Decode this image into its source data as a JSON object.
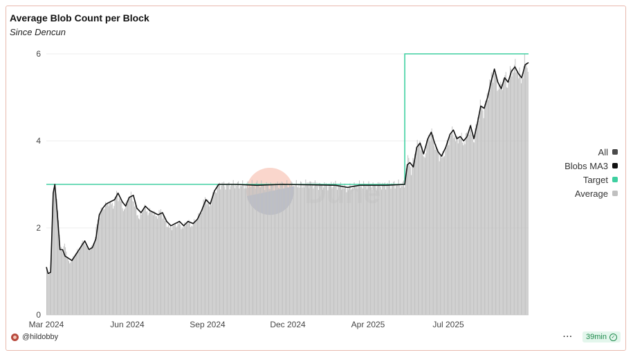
{
  "header": {
    "title": "Average Blob Count per Block",
    "subtitle": "Since Dencun"
  },
  "footer": {
    "user": "@hildobby",
    "refresh": "39min",
    "more_icon": "more-horizontal-icon",
    "check_icon": "check-circle-icon"
  },
  "watermark": "Dune",
  "legend": [
    {
      "label": "All",
      "color": "#4a4a4a"
    },
    {
      "label": "Blobs MA3",
      "color": "#111111"
    },
    {
      "label": "Target",
      "color": "#3ecfa0"
    },
    {
      "label": "Average",
      "color": "#c0c0c0"
    }
  ],
  "chart_data": {
    "type": "bar",
    "title": "Average Blob Count per Block",
    "subtitle": "Since Dencun",
    "x_range": [
      "2024-03-13",
      "2025-09-29"
    ],
    "x_ticks": [
      "Mar 2024",
      "Jun 2024",
      "Sep 2024",
      "Dec 2024",
      "Apr 2025",
      "Jul 2025"
    ],
    "y_ticks": [
      0,
      2,
      4,
      6
    ],
    "ylim": [
      0,
      6
    ],
    "grid": true,
    "legend_position": "right",
    "series": [
      {
        "name": "Average",
        "kind": "bar",
        "color": "#c0c0c0",
        "points": [
          [
            "2024-03-13",
            1.05
          ],
          [
            "2024-03-15",
            0.92
          ],
          [
            "2024-03-18",
            1.0
          ],
          [
            "2024-03-21",
            2.9
          ],
          [
            "2024-03-23",
            3.0
          ],
          [
            "2024-03-26",
            2.4
          ],
          [
            "2024-03-29",
            1.6
          ],
          [
            "2024-04-01",
            1.4
          ],
          [
            "2024-04-03",
            1.7
          ],
          [
            "2024-04-06",
            1.3
          ],
          [
            "2024-04-10",
            1.2
          ],
          [
            "2024-04-15",
            1.4
          ],
          [
            "2024-04-20",
            1.5
          ],
          [
            "2024-04-25",
            1.7
          ],
          [
            "2024-05-01",
            1.5
          ],
          [
            "2024-05-05",
            1.55
          ],
          [
            "2024-05-08",
            1.7
          ],
          [
            "2024-05-12",
            2.2
          ],
          [
            "2024-05-16",
            2.4
          ],
          [
            "2024-05-20",
            2.5
          ],
          [
            "2024-05-25",
            2.6
          ],
          [
            "2024-05-30",
            2.5
          ],
          [
            "2024-06-03",
            2.8
          ],
          [
            "2024-06-08",
            2.6
          ],
          [
            "2024-06-12",
            2.4
          ],
          [
            "2024-06-16",
            2.65
          ],
          [
            "2024-06-21",
            2.75
          ],
          [
            "2024-06-25",
            2.45
          ],
          [
            "2024-06-30",
            2.2
          ],
          [
            "2024-07-05",
            2.5
          ],
          [
            "2024-07-10",
            2.35
          ],
          [
            "2024-07-15",
            2.4
          ],
          [
            "2024-07-20",
            2.25
          ],
          [
            "2024-07-25",
            2.4
          ],
          [
            "2024-07-30",
            2.15
          ],
          [
            "2024-08-04",
            2.0
          ],
          [
            "2024-08-10",
            2.05
          ],
          [
            "2024-08-15",
            2.1
          ],
          [
            "2024-08-20",
            2.0
          ],
          [
            "2024-08-25",
            2.15
          ],
          [
            "2024-08-30",
            2.05
          ],
          [
            "2024-09-05",
            2.2
          ],
          [
            "2024-09-10",
            2.35
          ],
          [
            "2024-09-15",
            2.7
          ],
          [
            "2024-09-20",
            2.5
          ],
          [
            "2024-09-25",
            2.8
          ],
          [
            "2024-10-01",
            3.0
          ],
          [
            "2024-10-10",
            2.98
          ],
          [
            "2024-10-20",
            3.0
          ],
          [
            "2024-11-01",
            2.97
          ],
          [
            "2024-11-15",
            3.0
          ],
          [
            "2024-12-01",
            2.97
          ],
          [
            "2024-12-15",
            3.0
          ],
          [
            "2025-01-01",
            2.98
          ],
          [
            "2025-01-15",
            3.0
          ],
          [
            "2025-02-01",
            2.97
          ],
          [
            "2025-02-15",
            3.0
          ],
          [
            "2025-03-01",
            2.9
          ],
          [
            "2025-03-15",
            2.98
          ],
          [
            "2025-04-01",
            2.97
          ],
          [
            "2025-04-20",
            3.0
          ],
          [
            "2025-05-07",
            3.0
          ],
          [
            "2025-05-09",
            3.4
          ],
          [
            "2025-05-12",
            3.6
          ],
          [
            "2025-05-15",
            3.3
          ],
          [
            "2025-05-20",
            3.8
          ],
          [
            "2025-05-25",
            4.0
          ],
          [
            "2025-05-30",
            3.6
          ],
          [
            "2025-06-04",
            4.1
          ],
          [
            "2025-06-08",
            4.2
          ],
          [
            "2025-06-12",
            3.9
          ],
          [
            "2025-06-16",
            3.7
          ],
          [
            "2025-06-20",
            3.6
          ],
          [
            "2025-06-24",
            3.8
          ],
          [
            "2025-06-29",
            4.1
          ],
          [
            "2025-07-03",
            4.2
          ],
          [
            "2025-07-07",
            4.0
          ],
          [
            "2025-07-11",
            4.1
          ],
          [
            "2025-07-15",
            3.95
          ],
          [
            "2025-07-19",
            4.1
          ],
          [
            "2025-07-23",
            4.3
          ],
          [
            "2025-07-27",
            4.0
          ],
          [
            "2025-07-31",
            4.4
          ],
          [
            "2025-08-04",
            4.8
          ],
          [
            "2025-08-08",
            4.7
          ],
          [
            "2025-08-12",
            5.0
          ],
          [
            "2025-08-16",
            5.4
          ],
          [
            "2025-08-20",
            5.6
          ],
          [
            "2025-08-24",
            5.3
          ],
          [
            "2025-08-28",
            5.2
          ],
          [
            "2025-09-01",
            5.5
          ],
          [
            "2025-09-05",
            5.3
          ],
          [
            "2025-09-09",
            5.6
          ],
          [
            "2025-09-13",
            5.7
          ],
          [
            "2025-09-17",
            5.6
          ],
          [
            "2025-09-21",
            5.4
          ],
          [
            "2025-09-25",
            5.8
          ],
          [
            "2025-09-29",
            5.75
          ]
        ]
      },
      {
        "name": "Blobs MA3",
        "kind": "line",
        "color": "#111111",
        "points": [
          [
            "2024-03-13",
            1.1
          ],
          [
            "2024-03-15",
            0.95
          ],
          [
            "2024-03-18",
            0.98
          ],
          [
            "2024-03-21",
            2.8
          ],
          [
            "2024-03-23",
            3.0
          ],
          [
            "2024-03-26",
            2.3
          ],
          [
            "2024-03-29",
            1.5
          ],
          [
            "2024-04-01",
            1.5
          ],
          [
            "2024-04-04",
            1.35
          ],
          [
            "2024-04-08",
            1.3
          ],
          [
            "2024-04-12",
            1.25
          ],
          [
            "2024-04-17",
            1.4
          ],
          [
            "2024-04-22",
            1.55
          ],
          [
            "2024-04-27",
            1.7
          ],
          [
            "2024-05-02",
            1.5
          ],
          [
            "2024-05-06",
            1.55
          ],
          [
            "2024-05-10",
            1.75
          ],
          [
            "2024-05-14",
            2.3
          ],
          [
            "2024-05-18",
            2.45
          ],
          [
            "2024-05-22",
            2.55
          ],
          [
            "2024-05-27",
            2.6
          ],
          [
            "2024-06-01",
            2.65
          ],
          [
            "2024-06-05",
            2.8
          ],
          [
            "2024-06-10",
            2.6
          ],
          [
            "2024-06-14",
            2.5
          ],
          [
            "2024-06-18",
            2.7
          ],
          [
            "2024-06-23",
            2.75
          ],
          [
            "2024-06-27",
            2.45
          ],
          [
            "2024-07-02",
            2.35
          ],
          [
            "2024-07-07",
            2.5
          ],
          [
            "2024-07-12",
            2.4
          ],
          [
            "2024-07-17",
            2.35
          ],
          [
            "2024-07-22",
            2.3
          ],
          [
            "2024-07-27",
            2.35
          ],
          [
            "2024-08-01",
            2.15
          ],
          [
            "2024-08-06",
            2.05
          ],
          [
            "2024-08-11",
            2.1
          ],
          [
            "2024-08-16",
            2.15
          ],
          [
            "2024-08-21",
            2.05
          ],
          [
            "2024-08-26",
            2.15
          ],
          [
            "2024-09-01",
            2.1
          ],
          [
            "2024-09-06",
            2.2
          ],
          [
            "2024-09-11",
            2.4
          ],
          [
            "2024-09-16",
            2.65
          ],
          [
            "2024-09-21",
            2.55
          ],
          [
            "2024-09-26",
            2.85
          ],
          [
            "2024-10-01",
            3.0
          ],
          [
            "2024-10-20",
            3.0
          ],
          [
            "2024-11-15",
            2.98
          ],
          [
            "2024-12-15",
            3.0
          ],
          [
            "2025-01-15",
            2.99
          ],
          [
            "2025-02-15",
            2.98
          ],
          [
            "2025-03-01",
            2.93
          ],
          [
            "2025-03-15",
            2.98
          ],
          [
            "2025-04-15",
            2.98
          ],
          [
            "2025-05-07",
            3.0
          ],
          [
            "2025-05-10",
            3.45
          ],
          [
            "2025-05-13",
            3.5
          ],
          [
            "2025-05-17",
            3.4
          ],
          [
            "2025-05-21",
            3.85
          ],
          [
            "2025-05-25",
            3.95
          ],
          [
            "2025-05-29",
            3.7
          ],
          [
            "2025-06-03",
            4.05
          ],
          [
            "2025-06-07",
            4.2
          ],
          [
            "2025-06-11",
            3.95
          ],
          [
            "2025-06-15",
            3.75
          ],
          [
            "2025-06-19",
            3.65
          ],
          [
            "2025-06-24",
            3.85
          ],
          [
            "2025-06-29",
            4.15
          ],
          [
            "2025-07-03",
            4.25
          ],
          [
            "2025-07-07",
            4.05
          ],
          [
            "2025-07-11",
            4.1
          ],
          [
            "2025-07-15",
            4.0
          ],
          [
            "2025-07-19",
            4.1
          ],
          [
            "2025-07-23",
            4.35
          ],
          [
            "2025-07-27",
            4.05
          ],
          [
            "2025-07-31",
            4.4
          ],
          [
            "2025-08-04",
            4.8
          ],
          [
            "2025-08-08",
            4.75
          ],
          [
            "2025-08-12",
            5.0
          ],
          [
            "2025-08-16",
            5.35
          ],
          [
            "2025-08-20",
            5.65
          ],
          [
            "2025-08-24",
            5.35
          ],
          [
            "2025-08-28",
            5.2
          ],
          [
            "2025-09-01",
            5.45
          ],
          [
            "2025-09-05",
            5.35
          ],
          [
            "2025-09-09",
            5.6
          ],
          [
            "2025-09-13",
            5.7
          ],
          [
            "2025-09-17",
            5.55
          ],
          [
            "2025-09-21",
            5.45
          ],
          [
            "2025-09-25",
            5.75
          ],
          [
            "2025-09-29",
            5.8
          ]
        ]
      },
      {
        "name": "Target",
        "kind": "step-line",
        "color": "#3ecfa0",
        "points": [
          [
            "2024-03-13",
            3
          ],
          [
            "2025-05-07",
            3
          ],
          [
            "2025-05-07",
            6
          ],
          [
            "2025-09-29",
            6
          ]
        ]
      }
    ]
  }
}
